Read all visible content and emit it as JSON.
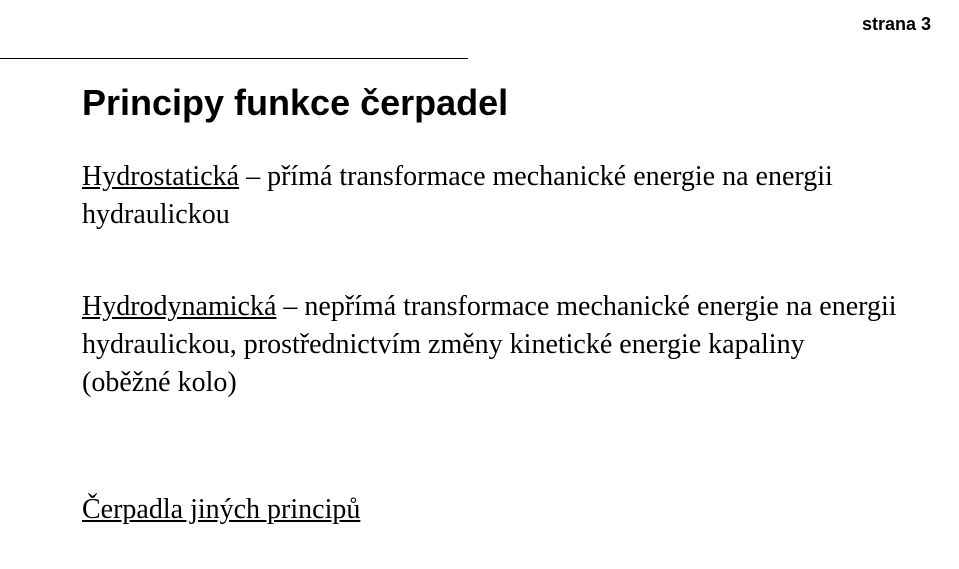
{
  "page_number_label": "strana 3",
  "title": "Principy funkce čerpadel",
  "block1": {
    "heading": "Hydrostatická",
    "rest": " – přímá transformace mechanické energie na energii hydraulickou"
  },
  "block2": {
    "heading": "Hydrodynamická",
    "rest": " – nepřímá transformace mechanické energie na energii hydraulickou, prostřednictvím změny kinetické energie kapaliny (oběžné kolo)"
  },
  "block3": {
    "heading": "Čerpadla jiných principů"
  }
}
